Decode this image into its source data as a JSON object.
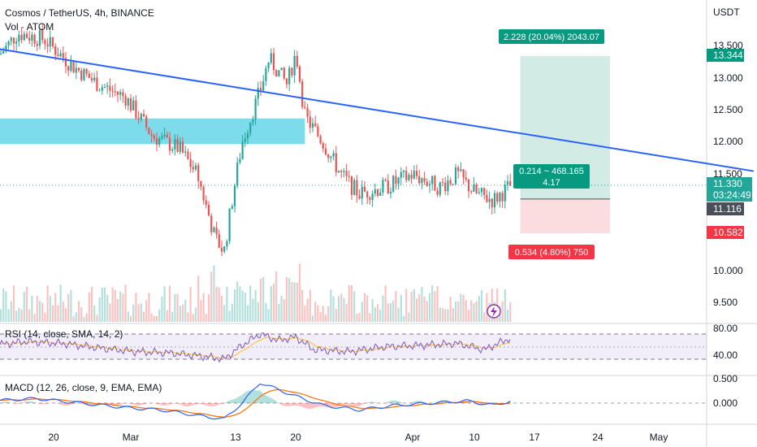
{
  "header": {
    "title": "Cosmos / TetherUS, 4h, BINANCE",
    "volume_label": "Vol · ATOM",
    "currency": "USDT"
  },
  "price_axis": {
    "ticks": [
      "13.500",
      "13.000",
      "12.500",
      "12.000",
      "11.500",
      "10.000",
      "9.500"
    ],
    "target_label": "13.344",
    "current_price": "11.330",
    "countdown": "03:24:49",
    "entry_label": "11.116",
    "stop_label": "10.582"
  },
  "rsi_axis": {
    "ticks": [
      "80.00",
      "40.00"
    ]
  },
  "macd_axis": {
    "ticks": [
      "0.500",
      "0.000"
    ]
  },
  "time_axis": {
    "ticks": [
      "20",
      "Mar",
      "13",
      "20",
      "Apr",
      "10",
      "17",
      "24",
      "May"
    ]
  },
  "position": {
    "target_text": "2.228 (20.04%) 2043.07",
    "center_line1": "0.214 ~ 468.165",
    "center_line2": "4.17",
    "stop_text": "0.534 (4.80%) 750"
  },
  "indicators": {
    "rsi_label": "RSI (14, close, SMA, 14, 2)",
    "macd_label": "MACD (12, 26, close, 9, EMA, EMA)"
  },
  "colors": {
    "up": "#26a69a",
    "down": "#ef5350",
    "trendline": "#2962ff",
    "zone": "#5bd3e6",
    "target_fill": "#cde9e2",
    "stop_fill": "#fbd9dc",
    "rsi_line": "#7e57c2",
    "rsi_ma": "#fbc02d",
    "macd_line": "#2962ff",
    "signal_line": "#ff6d00"
  },
  "chart_data": {
    "type": "candlestick",
    "symbol": "Cosmos / TetherUS",
    "interval": "4h",
    "exchange": "BINANCE",
    "price_range": [
      9.3,
      13.85
    ],
    "close_path": [
      {
        "date": "2023-02-13",
        "price": 13.2
      },
      {
        "date": "2023-02-16",
        "price": 13.7
      },
      {
        "date": "2023-02-19",
        "price": 13.6
      },
      {
        "date": "2023-02-22",
        "price": 13.2
      },
      {
        "date": "2023-02-25",
        "price": 12.9
      },
      {
        "date": "2023-02-28",
        "price": 12.7
      },
      {
        "date": "2023-03-03",
        "price": 12.1
      },
      {
        "date": "2023-03-06",
        "price": 11.9
      },
      {
        "date": "2023-03-08",
        "price": 11.5
      },
      {
        "date": "2023-03-10",
        "price": 10.5
      },
      {
        "date": "2023-03-11",
        "price": 10.3
      },
      {
        "date": "2023-03-12",
        "price": 11.2
      },
      {
        "date": "2023-03-13",
        "price": 12.0
      },
      {
        "date": "2023-03-15",
        "price": 12.8
      },
      {
        "date": "2023-03-16",
        "price": 13.3
      },
      {
        "date": "2023-03-18",
        "price": 12.9
      },
      {
        "date": "2023-03-19",
        "price": 13.4
      },
      {
        "date": "2023-03-20",
        "price": 12.4
      },
      {
        "date": "2023-03-22",
        "price": 12.0
      },
      {
        "date": "2023-03-24",
        "price": 11.5
      },
      {
        "date": "2023-03-26",
        "price": 11.2
      },
      {
        "date": "2023-03-29",
        "price": 11.3
      },
      {
        "date": "2023-04-01",
        "price": 11.5
      },
      {
        "date": "2023-04-04",
        "price": 11.3
      },
      {
        "date": "2023-04-06",
        "price": 11.5
      },
      {
        "date": "2023-04-08",
        "price": 11.2
      },
      {
        "date": "2023-04-10",
        "price": 11.1
      },
      {
        "date": "2023-04-12",
        "price": 11.33
      }
    ],
    "trendline": {
      "from": {
        "date": "2023-02-13",
        "price": 13.45
      },
      "to": {
        "date": "2023-05-09",
        "price": 11.55
      }
    },
    "resistance_zone": {
      "from_date": "2023-02-13",
      "to_date": "2023-03-20",
      "low": 11.97,
      "high": 12.37
    },
    "long_position": {
      "from_date": "2023-04-13",
      "to_date": "2023-04-23",
      "entry": 11.116,
      "target": 13.344,
      "stop": 10.582
    },
    "current_price": 11.33,
    "rsi": {
      "params": "14, close, SMA, 14, 2",
      "levels": [
        70,
        50,
        30
      ],
      "range": [
        20,
        90
      ],
      "values": [
        {
          "date": "2023-02-13",
          "value": 52
        },
        {
          "date": "2023-02-17",
          "value": 58
        },
        {
          "date": "2023-02-21",
          "value": 55
        },
        {
          "date": "2023-02-25",
          "value": 48
        },
        {
          "date": "2023-03-01",
          "value": 42
        },
        {
          "date": "2023-03-05",
          "value": 40
        },
        {
          "date": "2023-03-09",
          "value": 34
        },
        {
          "date": "2023-03-11",
          "value": 30
        },
        {
          "date": "2023-03-13",
          "value": 52
        },
        {
          "date": "2023-03-15",
          "value": 70
        },
        {
          "date": "2023-03-17",
          "value": 60
        },
        {
          "date": "2023-03-19",
          "value": 65
        },
        {
          "date": "2023-03-21",
          "value": 45
        },
        {
          "date": "2023-03-25",
          "value": 42
        },
        {
          "date": "2023-03-29",
          "value": 50
        },
        {
          "date": "2023-04-02",
          "value": 52
        },
        {
          "date": "2023-04-06",
          "value": 55
        },
        {
          "date": "2023-04-09",
          "value": 45
        },
        {
          "date": "2023-04-11",
          "value": 58
        },
        {
          "date": "2023-04-12",
          "value": 64
        }
      ]
    },
    "macd": {
      "params": "12, 26, close, 9, EMA, EMA",
      "range": [
        -0.45,
        0.62
      ],
      "values": [
        {
          "date": "2023-02-13",
          "value": 0.05
        },
        {
          "date": "2023-02-18",
          "value": 0.1
        },
        {
          "date": "2023-02-23",
          "value": 0.0
        },
        {
          "date": "2023-02-28",
          "value": -0.1
        },
        {
          "date": "2023-03-04",
          "value": -0.15
        },
        {
          "date": "2023-03-09",
          "value": -0.3
        },
        {
          "date": "2023-03-11",
          "value": -0.35
        },
        {
          "date": "2023-03-13",
          "value": 0.0
        },
        {
          "date": "2023-03-15",
          "value": 0.45
        },
        {
          "date": "2023-03-17",
          "value": 0.3
        },
        {
          "date": "2023-03-19",
          "value": 0.15
        },
        {
          "date": "2023-03-22",
          "value": -0.05
        },
        {
          "date": "2023-03-26",
          "value": -0.15
        },
        {
          "date": "2023-03-30",
          "value": -0.05
        },
        {
          "date": "2023-04-03",
          "value": 0.0
        },
        {
          "date": "2023-04-07",
          "value": 0.05
        },
        {
          "date": "2023-04-10",
          "value": -0.05
        },
        {
          "date": "2023-04-12",
          "value": 0.05
        }
      ]
    }
  }
}
